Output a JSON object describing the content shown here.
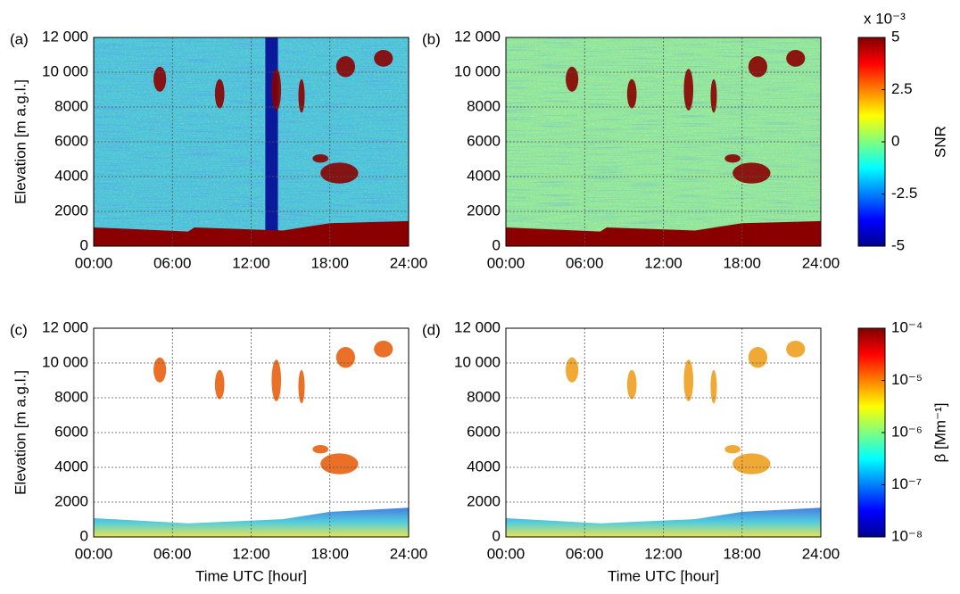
{
  "chart_data": [
    {
      "type": "heatmap",
      "panel_label": "(a)",
      "ylabel": "Elevation [m a.g.l.]",
      "xlim": [
        0,
        24
      ],
      "ylim": [
        0,
        12000
      ],
      "xticks": [
        {
          "value": 0,
          "label": "00:00"
        },
        {
          "value": 6,
          "label": "06:00"
        },
        {
          "value": 12,
          "label": "12:00"
        },
        {
          "value": 18,
          "label": "18:00"
        },
        {
          "value": 24,
          "label": "24:00"
        }
      ],
      "yticks": [
        0,
        2000,
        4000,
        6000,
        8000,
        {
          "value": 10000,
          "label": "10 000"
        },
        {
          "value": 12000,
          "label": "12 000"
        }
      ],
      "grid": true
    },
    {
      "type": "heatmap",
      "panel_label": "(b)",
      "xlim": [
        0,
        24
      ],
      "ylim": [
        0,
        12000
      ],
      "xticks": [
        {
          "value": 0,
          "label": "00:00"
        },
        {
          "value": 6,
          "label": "06:00"
        },
        {
          "value": 12,
          "label": "12:00"
        },
        {
          "value": 18,
          "label": "18:00"
        },
        {
          "value": 24,
          "label": "24:00"
        }
      ],
      "yticks": [
        0,
        2000,
        4000,
        6000,
        8000,
        {
          "value": 10000,
          "label": "10 000"
        },
        {
          "value": 12000,
          "label": "12 000"
        }
      ],
      "grid": true,
      "colorbar": {
        "label": "SNR",
        "multiplier": "x 10⁻³",
        "colormap": "jet",
        "clim": [
          -5,
          5
        ],
        "ticks": [
          5,
          2.5,
          0,
          -2.5,
          -5
        ]
      }
    },
    {
      "type": "heatmap",
      "panel_label": "(c)",
      "ylabel": "Elevation [m a.g.l.]",
      "xlabel": "Time UTC [hour]",
      "xlim": [
        0,
        24
      ],
      "ylim": [
        0,
        12000
      ],
      "xticks": [
        {
          "value": 0,
          "label": "00:00"
        },
        {
          "value": 6,
          "label": "06:00"
        },
        {
          "value": 12,
          "label": "12:00"
        },
        {
          "value": 18,
          "label": "18:00"
        },
        {
          "value": 24,
          "label": "24:00"
        }
      ],
      "yticks": [
        0,
        2000,
        4000,
        6000,
        8000,
        {
          "value": 10000,
          "label": "10 000"
        },
        {
          "value": 12000,
          "label": "12 000"
        }
      ],
      "grid": true
    },
    {
      "type": "heatmap",
      "panel_label": "(d)",
      "xlabel": "Time UTC [hour]",
      "xlim": [
        0,
        24
      ],
      "ylim": [
        0,
        12000
      ],
      "xticks": [
        {
          "value": 0,
          "label": "00:00"
        },
        {
          "value": 6,
          "label": "06:00"
        },
        {
          "value": 12,
          "label": "12:00"
        },
        {
          "value": 18,
          "label": "18:00"
        },
        {
          "value": 24,
          "label": "24:00"
        }
      ],
      "yticks": [
        0,
        2000,
        4000,
        6000,
        8000,
        {
          "value": 10000,
          "label": "10 000"
        },
        {
          "value": 12000,
          "label": "12 000"
        }
      ],
      "grid": true,
      "colorbar": {
        "label": "β [Mm⁻¹]",
        "colormap": "jet",
        "log": true,
        "clim": [
          1e-08,
          0.0001
        ],
        "ticks": [
          {
            "value": 0.0001,
            "label": "10⁻⁴"
          },
          {
            "value": 1e-05,
            "label": "10⁻⁵"
          },
          {
            "value": 1e-06,
            "label": "10⁻⁶"
          },
          {
            "value": 1e-07,
            "label": "10⁻⁷"
          },
          {
            "value": 1e-08,
            "label": "10⁻⁸"
          }
        ]
      }
    }
  ]
}
